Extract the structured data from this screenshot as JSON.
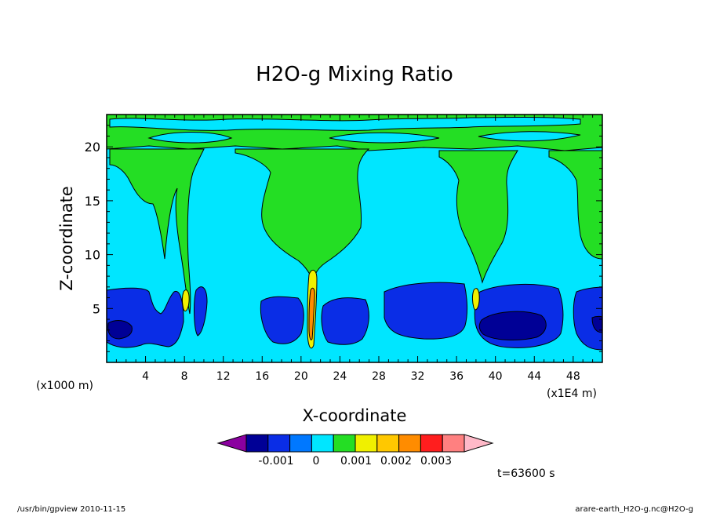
{
  "chart_data": {
    "type": "heatmap",
    "title": "H2O-g Mixing Ratio",
    "xlabel": "X-coordinate",
    "ylabel": "Z-coordinate",
    "x_scale_note": "(x1E4 m)",
    "y_scale_note": "(x1000 m)",
    "xlim": [
      0,
      51
    ],
    "ylim": [
      0,
      23
    ],
    "x_ticks": [
      "4",
      "8",
      "12",
      "16",
      "20",
      "24",
      "28",
      "32",
      "36",
      "40",
      "44",
      "48"
    ],
    "y_ticks": [
      "5",
      "10",
      "15",
      "20"
    ],
    "colorbar": {
      "colors": [
        "#8b00a0",
        "#000096",
        "#0a2de6",
        "#0078ff",
        "#00e6ff",
        "#24de24",
        "#f0f000",
        "#ffc800",
        "#ff8c00",
        "#ff1e1e",
        "#ff8080",
        "#ffb9c8"
      ],
      "tick_labels": [
        "-0.001",
        "0",
        "0.001",
        "0.002",
        "0.003"
      ]
    },
    "regions": [
      {
        "level": "cyan",
        "desc": "background mid troposphere"
      },
      {
        "level": "green",
        "desc": "plumes near x=10, 21, 38 and upper layer"
      },
      {
        "level": "blue",
        "desc": "low-level patches below z=7"
      },
      {
        "level": "dark-blue",
        "desc": "cores near x=2 and x=44"
      }
    ]
  },
  "footer": {
    "time_label": "t=63600 s",
    "left_note": "/usr/bin/gpview 2010-11-15",
    "right_note": "arare-earth_H2O-g.nc@H2O-g"
  }
}
